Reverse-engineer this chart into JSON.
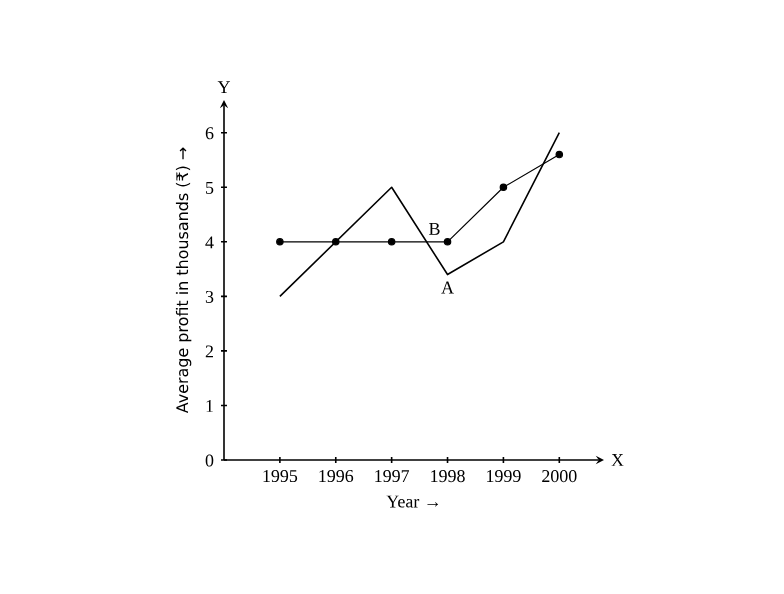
{
  "chart_data": {
    "type": "line",
    "xlabel": "Year →",
    "ylabel": "Average profit in thousands (₹) →",
    "x": [
      1995,
      1996,
      1997,
      1998,
      1999,
      2000
    ],
    "series": [
      {
        "name": "A",
        "color": "#000000",
        "values": [
          3,
          4,
          5,
          3.4,
          4,
          6
        ],
        "marker": "none"
      },
      {
        "name": "B",
        "color": "#000000",
        "values": [
          4,
          4,
          4,
          4,
          5,
          5.6
        ],
        "marker": "circle"
      }
    ],
    "xlim": [
      1994,
      2000.8
    ],
    "ylim": [
      0,
      6.6
    ],
    "xticks": [
      1995,
      1996,
      1997,
      1998,
      1999,
      2000
    ],
    "yticks": [
      0,
      1,
      2,
      3,
      4,
      5,
      6
    ],
    "annotations": [
      "X",
      "Y"
    ],
    "grid": false,
    "legend": false
  }
}
